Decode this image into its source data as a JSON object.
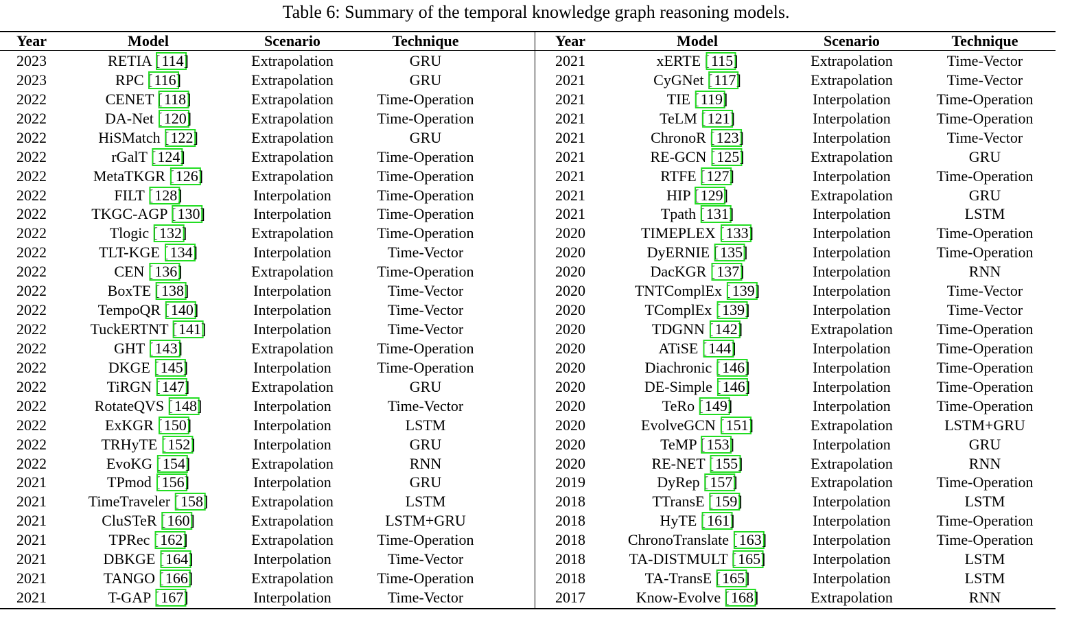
{
  "caption": "Table 6: Summary of the temporal knowledge graph reasoning models.",
  "headers": [
    "Year",
    "Model",
    "Scenario",
    "Technique"
  ],
  "colors": {
    "citation_box": "#22dd22",
    "text": "#000000"
  },
  "left_rows": [
    {
      "year": "2023",
      "model": "RETIA",
      "ref": "114",
      "scenario": "Extrapolation",
      "technique": "GRU"
    },
    {
      "year": "2023",
      "model": "RPC",
      "ref": "116",
      "scenario": "Extrapolation",
      "technique": "GRU"
    },
    {
      "year": "2022",
      "model": "CENET",
      "ref": "118",
      "scenario": "Extrapolation",
      "technique": "Time-Operation"
    },
    {
      "year": "2022",
      "model": "DA-Net",
      "ref": "120",
      "scenario": "Extrapolation",
      "technique": "Time-Operation"
    },
    {
      "year": "2022",
      "model": "HiSMatch",
      "ref": "122",
      "scenario": "Extrapolation",
      "technique": "GRU"
    },
    {
      "year": "2022",
      "model": "rGalT",
      "ref": "124",
      "scenario": "Extrapolation",
      "technique": "Time-Operation"
    },
    {
      "year": "2022",
      "model": "MetaTKGR",
      "ref": "126",
      "scenario": "Extrapolation",
      "technique": "Time-Operation"
    },
    {
      "year": "2022",
      "model": "FILT",
      "ref": "128",
      "scenario": "Interpolation",
      "technique": "Time-Operation"
    },
    {
      "year": "2022",
      "model": "TKGC-AGP",
      "ref": "130",
      "scenario": "Interpolation",
      "technique": "Time-Operation"
    },
    {
      "year": "2022",
      "model": "Tlogic",
      "ref": "132",
      "scenario": "Extrapolation",
      "technique": "Time-Operation"
    },
    {
      "year": "2022",
      "model": "TLT-KGE",
      "ref": "134",
      "scenario": "Interpolation",
      "technique": "Time-Vector"
    },
    {
      "year": "2022",
      "model": "CEN",
      "ref": "136",
      "scenario": "Extrapolation",
      "technique": "Time-Operation"
    },
    {
      "year": "2022",
      "model": "BoxTE",
      "ref": "138",
      "scenario": "Interpolation",
      "technique": "Time-Vector"
    },
    {
      "year": "2022",
      "model": "TempoQR",
      "ref": "140",
      "scenario": "Interpolation",
      "technique": "Time-Vector"
    },
    {
      "year": "2022",
      "model": "TuckERTNT",
      "ref": "141",
      "scenario": "Interpolation",
      "technique": "Time-Vector"
    },
    {
      "year": "2022",
      "model": "GHT",
      "ref": "143",
      "scenario": "Extrapolation",
      "technique": "Time-Operation"
    },
    {
      "year": "2022",
      "model": "DKGE",
      "ref": "145",
      "scenario": "Interpolation",
      "technique": "Time-Operation"
    },
    {
      "year": "2022",
      "model": "TiRGN",
      "ref": "147",
      "scenario": "Extrapolation",
      "technique": "GRU"
    },
    {
      "year": "2022",
      "model": "RotateQVS",
      "ref": "148",
      "scenario": "Interpolation",
      "technique": "Time-Vector"
    },
    {
      "year": "2022",
      "model": "ExKGR",
      "ref": "150",
      "scenario": "Interpolation",
      "technique": "LSTM"
    },
    {
      "year": "2022",
      "model": "TRHyTE",
      "ref": "152",
      "scenario": "Interpolation",
      "technique": "GRU"
    },
    {
      "year": "2022",
      "model": "EvoKG",
      "ref": "154",
      "scenario": "Extrapolation",
      "technique": "RNN"
    },
    {
      "year": "2021",
      "model": "TPmod",
      "ref": "156",
      "scenario": "Interpolation",
      "technique": "GRU"
    },
    {
      "year": "2021",
      "model": "TimeTraveler",
      "ref": "158",
      "scenario": "Extrapolation",
      "technique": "LSTM"
    },
    {
      "year": "2021",
      "model": "CluSTeR",
      "ref": "160",
      "scenario": "Extrapolation",
      "technique": "LSTM+GRU"
    },
    {
      "year": "2021",
      "model": "TPRec",
      "ref": "162",
      "scenario": "Extrapolation",
      "technique": "Time-Operation"
    },
    {
      "year": "2021",
      "model": "DBKGE",
      "ref": "164",
      "scenario": "Interpolation",
      "technique": "Time-Vector"
    },
    {
      "year": "2021",
      "model": "TANGO",
      "ref": "166",
      "scenario": "Extrapolation",
      "technique": "Time-Operation"
    },
    {
      "year": "2021",
      "model": "T-GAP",
      "ref": "167",
      "scenario": "Interpolation",
      "technique": "Time-Vector"
    }
  ],
  "right_rows": [
    {
      "year": "2021",
      "model": "xERTE",
      "ref": "115",
      "scenario": "Extrapolation",
      "technique": "Time-Vector"
    },
    {
      "year": "2021",
      "model": "CyGNet",
      "ref": "117",
      "scenario": "Extrapolation",
      "technique": "Time-Vector"
    },
    {
      "year": "2021",
      "model": "TIE",
      "ref": "119",
      "scenario": "Interpolation",
      "technique": "Time-Operation"
    },
    {
      "year": "2021",
      "model": "TeLM",
      "ref": "121",
      "scenario": "Interpolation",
      "technique": "Time-Operation"
    },
    {
      "year": "2021",
      "model": "ChronoR",
      "ref": "123",
      "scenario": "Interpolation",
      "technique": "Time-Vector"
    },
    {
      "year": "2021",
      "model": "RE-GCN",
      "ref": "125",
      "scenario": "Extrapolation",
      "technique": "GRU"
    },
    {
      "year": "2021",
      "model": "RTFE",
      "ref": "127",
      "scenario": "Interpolation",
      "technique": "Time-Operation"
    },
    {
      "year": "2021",
      "model": "HIP",
      "ref": "129",
      "scenario": "Extrapolation",
      "technique": "GRU"
    },
    {
      "year": "2021",
      "model": "Tpath",
      "ref": "131",
      "scenario": "Interpolation",
      "technique": "LSTM"
    },
    {
      "year": "2020",
      "model": "TIMEPLEX",
      "ref": "133",
      "scenario": "Interpolation",
      "technique": "Time-Operation"
    },
    {
      "year": "2020",
      "model": "DyERNIE",
      "ref": "135",
      "scenario": "Interpolation",
      "technique": "Time-Operation"
    },
    {
      "year": "2020",
      "model": "DacKGR",
      "ref": "137",
      "scenario": "Interpolation",
      "technique": "RNN"
    },
    {
      "year": "2020",
      "model": "TNTComplEx",
      "ref": "139",
      "scenario": "Interpolation",
      "technique": "Time-Vector"
    },
    {
      "year": "2020",
      "model": "TComplEx",
      "ref": "139",
      "scenario": "Interpolation",
      "technique": "Time-Vector"
    },
    {
      "year": "2020",
      "model": "TDGNN",
      "ref": "142",
      "scenario": "Extrapolation",
      "technique": "Time-Operation"
    },
    {
      "year": "2020",
      "model": "ATiSE",
      "ref": "144",
      "scenario": "Interpolation",
      "technique": "Time-Operation"
    },
    {
      "year": "2020",
      "model": "Diachronic",
      "ref": "146",
      "scenario": "Interpolation",
      "technique": "Time-Operation"
    },
    {
      "year": "2020",
      "model": "DE-Simple",
      "ref": "146",
      "scenario": "Interpolation",
      "technique": "Time-Operation"
    },
    {
      "year": "2020",
      "model": "TeRo",
      "ref": "149",
      "scenario": "Interpolation",
      "technique": "Time-Operation"
    },
    {
      "year": "2020",
      "model": "EvolveGCN",
      "ref": "151",
      "scenario": "Extrapolation",
      "technique": "LSTM+GRU"
    },
    {
      "year": "2020",
      "model": "TeMP",
      "ref": "153",
      "scenario": "Interpolation",
      "technique": "GRU"
    },
    {
      "year": "2020",
      "model": "RE-NET",
      "ref": "155",
      "scenario": "Extrapolation",
      "technique": "RNN"
    },
    {
      "year": "2019",
      "model": "DyRep",
      "ref": "157",
      "scenario": "Extrapolation",
      "technique": "Time-Operation"
    },
    {
      "year": "2018",
      "model": "TTransE",
      "ref": "159",
      "scenario": "Interpolation",
      "technique": "LSTM"
    },
    {
      "year": "2018",
      "model": "HyTE",
      "ref": "161",
      "scenario": "Interpolation",
      "technique": "Time-Operation"
    },
    {
      "year": "2018",
      "model": "ChronoTranslate",
      "ref": "163",
      "scenario": "Interpolation",
      "technique": "Time-Operation"
    },
    {
      "year": "2018",
      "model": "TA-DISTMULT",
      "ref": "165",
      "scenario": "Interpolation",
      "technique": "LSTM"
    },
    {
      "year": "2018",
      "model": "TA-TransE",
      "ref": "165",
      "scenario": "Interpolation",
      "technique": "LSTM"
    },
    {
      "year": "2017",
      "model": "Know-Evolve",
      "ref": "168",
      "scenario": "Extrapolation",
      "technique": "RNN"
    }
  ]
}
